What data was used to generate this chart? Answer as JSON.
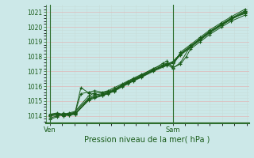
{
  "xlabel": "Pression niveau de la mer( hPa )",
  "bg_color": "#cce8e8",
  "grid_color_major": "#e8c8c8",
  "grid_color_minor": "#d8e8d8",
  "line_color": "#1a5c1a",
  "marker_color": "#1a5c1a",
  "axis_label_color": "#1a5c1a",
  "tick_label_color": "#1a5c1a",
  "border_color": "#2d6e2d",
  "ylim": [
    1013.5,
    1021.5
  ],
  "yticks": [
    1014,
    1015,
    1016,
    1017,
    1018,
    1019,
    1020,
    1021
  ],
  "xtick_labels": [
    "Ven",
    "Sam"
  ],
  "xtick_positions": [
    0.0,
    0.63
  ],
  "xlim": [
    -0.02,
    1.02
  ],
  "series": [
    [
      0.0,
      1013.85,
      0.04,
      1014.0,
      0.07,
      1014.1,
      0.1,
      1014.15,
      0.13,
      1014.1,
      0.2,
      1015.05,
      0.23,
      1015.2,
      0.27,
      1015.35,
      0.3,
      1015.5,
      0.33,
      1015.65,
      0.37,
      1015.95,
      0.4,
      1016.15,
      0.43,
      1016.35,
      0.47,
      1016.6,
      0.53,
      1017.0,
      0.6,
      1017.4,
      0.63,
      1017.55,
      0.67,
      1018.1,
      0.72,
      1018.6,
      0.77,
      1019.1,
      0.82,
      1019.6,
      0.88,
      1020.1,
      0.93,
      1020.5,
      1.0,
      1021.0
    ],
    [
      0.0,
      1014.05,
      0.04,
      1014.1,
      0.07,
      1014.0,
      0.1,
      1014.05,
      0.13,
      1014.15,
      0.2,
      1015.1,
      0.23,
      1015.25,
      0.27,
      1015.4,
      0.3,
      1015.55,
      0.33,
      1015.7,
      0.37,
      1016.0,
      0.4,
      1016.2,
      0.43,
      1016.4,
      0.47,
      1016.65,
      0.53,
      1017.05,
      0.6,
      1017.45,
      0.63,
      1017.6,
      0.67,
      1018.15,
      0.72,
      1018.65,
      0.77,
      1019.15,
      0.82,
      1019.65,
      0.88,
      1020.15,
      0.93,
      1020.55,
      1.0,
      1021.05
    ],
    [
      0.0,
      1014.1,
      0.04,
      1014.2,
      0.07,
      1014.1,
      0.1,
      1014.2,
      0.13,
      1014.3,
      0.2,
      1015.35,
      0.23,
      1015.55,
      0.27,
      1015.55,
      0.3,
      1015.65,
      0.33,
      1015.8,
      0.37,
      1016.1,
      0.4,
      1016.3,
      0.43,
      1016.5,
      0.47,
      1016.75,
      0.53,
      1017.2,
      0.58,
      1017.45,
      0.6,
      1017.55,
      0.63,
      1017.35,
      0.67,
      1018.3,
      0.72,
      1018.8,
      0.77,
      1019.3,
      0.82,
      1019.8,
      0.88,
      1020.3,
      0.93,
      1020.7,
      1.0,
      1021.2
    ],
    [
      0.0,
      1014.0,
      0.04,
      1014.05,
      0.07,
      1014.05,
      0.1,
      1014.1,
      0.13,
      1014.2,
      0.16,
      1015.5,
      0.2,
      1015.6,
      0.23,
      1015.7,
      0.27,
      1015.6,
      0.3,
      1015.7,
      0.33,
      1015.9,
      0.37,
      1016.15,
      0.4,
      1016.35,
      0.43,
      1016.55,
      0.47,
      1016.8,
      0.53,
      1017.15,
      0.58,
      1017.55,
      0.6,
      1017.7,
      0.63,
      1017.25,
      0.67,
      1017.5,
      0.7,
      1018.0,
      0.72,
      1018.5,
      0.77,
      1019.0,
      0.82,
      1019.5,
      0.88,
      1020.0,
      0.93,
      1020.4,
      1.0,
      1020.8
    ],
    [
      0.0,
      1013.75,
      0.04,
      1013.95,
      0.07,
      1014.2,
      0.1,
      1014.05,
      0.13,
      1014.1,
      0.2,
      1015.15,
      0.23,
      1015.3,
      0.27,
      1015.45,
      0.3,
      1015.55,
      0.33,
      1015.7,
      0.37,
      1016.0,
      0.4,
      1016.2,
      0.43,
      1016.4,
      0.47,
      1016.65,
      0.53,
      1017.05,
      0.58,
      1017.35,
      0.6,
      1017.5,
      0.63,
      1017.2,
      0.67,
      1017.6,
      0.72,
      1018.7,
      0.77,
      1019.2,
      0.82,
      1019.7,
      0.88,
      1020.15,
      0.93,
      1020.55,
      1.0,
      1020.95
    ],
    [
      0.0,
      1014.05,
      0.04,
      1014.1,
      0.07,
      1014.0,
      0.1,
      1014.1,
      0.13,
      1014.2,
      0.16,
      1015.9,
      0.2,
      1015.55,
      0.23,
      1015.5,
      0.27,
      1015.35,
      0.3,
      1015.55,
      0.33,
      1015.75,
      0.37,
      1016.05,
      0.4,
      1016.25,
      0.43,
      1016.45,
      0.47,
      1016.7,
      0.53,
      1017.1,
      0.6,
      1017.5,
      0.63,
      1017.65,
      0.67,
      1018.2,
      0.72,
      1018.7,
      0.77,
      1019.2,
      0.82,
      1019.7,
      0.88,
      1020.2,
      0.93,
      1020.6,
      1.0,
      1021.1
    ],
    [
      0.0,
      1014.1,
      0.04,
      1014.15,
      0.07,
      1014.05,
      0.1,
      1014.15,
      0.13,
      1014.25,
      0.2,
      1015.2,
      0.23,
      1015.4,
      0.27,
      1015.5,
      0.3,
      1015.6,
      0.33,
      1015.75,
      0.37,
      1016.05,
      0.4,
      1016.25,
      0.43,
      1016.45,
      0.47,
      1016.7,
      0.53,
      1017.1,
      0.6,
      1017.5,
      0.63,
      1017.65,
      0.67,
      1018.2,
      0.72,
      1018.7,
      0.77,
      1019.2,
      0.82,
      1019.7,
      0.88,
      1020.2,
      0.93,
      1020.6,
      1.0,
      1020.9
    ]
  ],
  "ven_line_x": 0.0,
  "sam_line_x": 0.63
}
